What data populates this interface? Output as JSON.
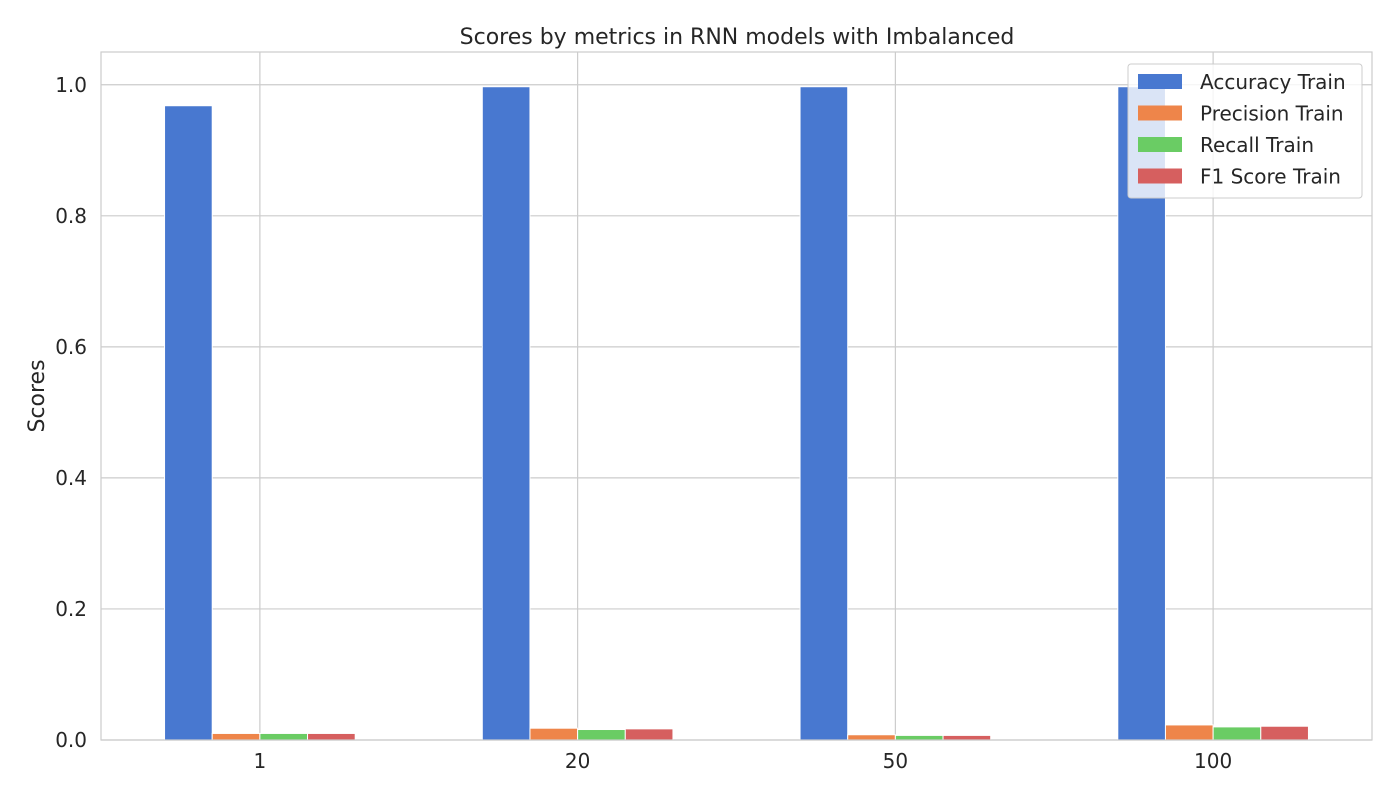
{
  "chart_data": {
    "type": "bar",
    "title": "Scores by metrics in RNN models with Imbalanced",
    "xlabel": "",
    "ylabel": "Scores",
    "categories": [
      "1",
      "20",
      "50",
      "100"
    ],
    "ylim": [
      0,
      1.05
    ],
    "yticks": [
      "0.0",
      "0.2",
      "0.4",
      "0.6",
      "0.8",
      "1.0"
    ],
    "grid": true,
    "legend_position": "top-right",
    "series": [
      {
        "name": "Accuracy Train",
        "color": "#4878d0",
        "values": [
          0.968,
          0.997,
          0.997,
          0.997
        ]
      },
      {
        "name": "Precision Train",
        "color": "#ee854a",
        "values": [
          0.01,
          0.018,
          0.008,
          0.023
        ]
      },
      {
        "name": "Recall Train",
        "color": "#6acc64",
        "values": [
          0.01,
          0.016,
          0.007,
          0.02
        ]
      },
      {
        "name": "F1 Score Train",
        "color": "#d65f5f",
        "values": [
          0.01,
          0.017,
          0.007,
          0.021
        ]
      }
    ]
  }
}
